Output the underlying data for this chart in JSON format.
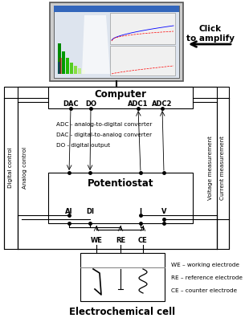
{
  "bg_color": "#ffffff",
  "click_text": "Click\nto amplify",
  "computer_label": "Computer",
  "potentiostat_label": "Potentiostat",
  "cell_label": "Electrochemical cell",
  "digital_label": "Digital control",
  "analog_label": "Analog control",
  "voltage_label": "Voltage measurement",
  "current_label": "Current measurement",
  "legend_adc": "ADC - analog-to-digital converter",
  "legend_dac": "DAC - digital-to-analog converter",
  "legend_do": "DO - digital output",
  "legend_we": "WE – working electrode",
  "legend_re": "RE – reference electrode",
  "legend_ce": "CE – counter electrode",
  "computer_ports": [
    "DAC",
    "DO",
    "ADC1",
    "ADC2"
  ],
  "potentiostat_ports": [
    "AI",
    "DI",
    "I",
    "V"
  ],
  "electrode_labels": [
    "WE",
    "RE",
    "CE"
  ]
}
